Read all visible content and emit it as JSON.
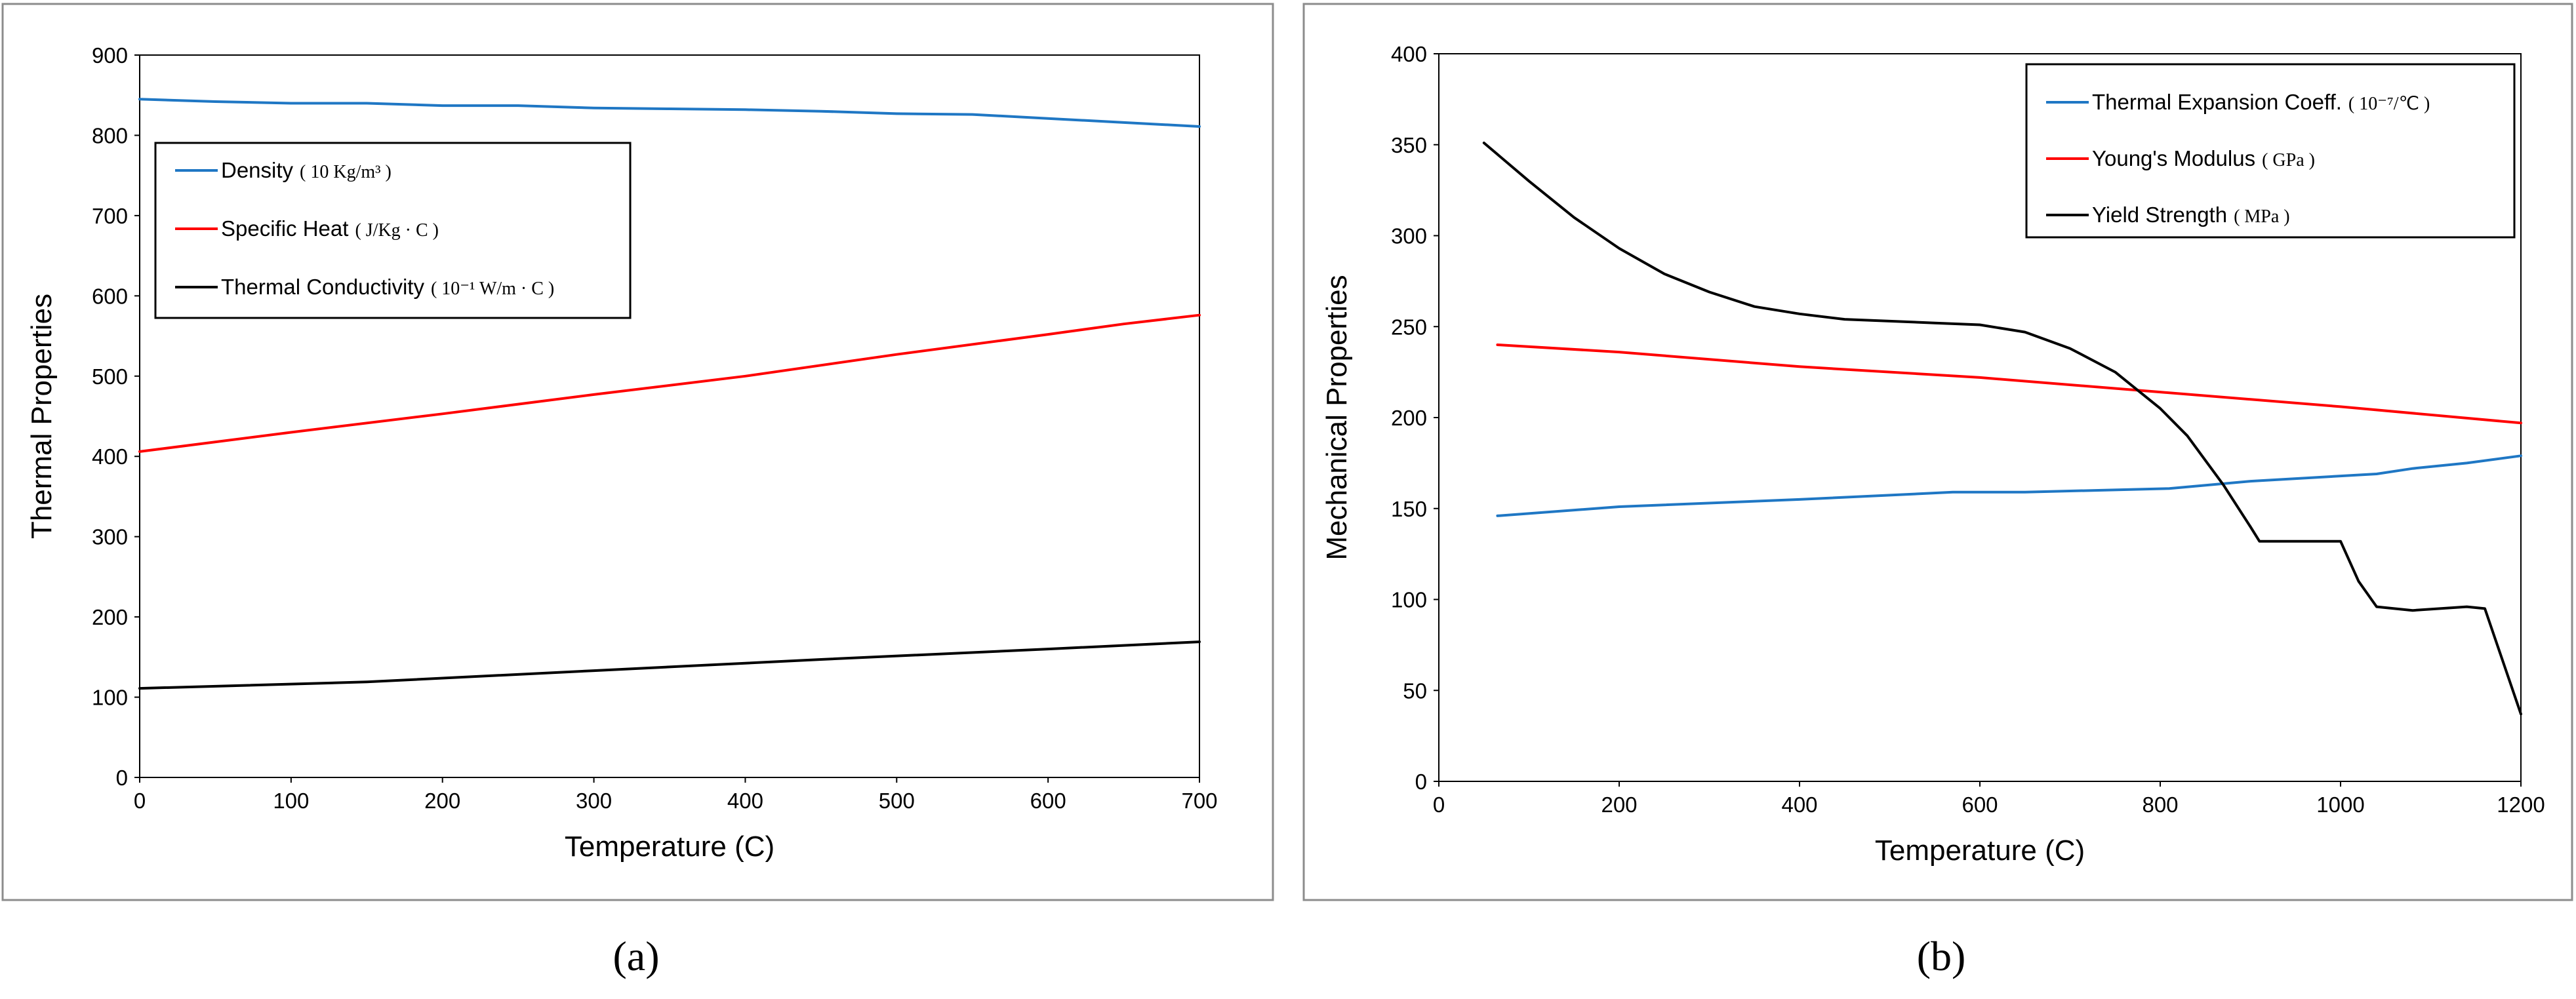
{
  "panels": {
    "a": "(a)",
    "b": "(b)"
  },
  "chart_data": [
    {
      "type": "line",
      "ylabel": "Thermal Properties",
      "xlabel": "Temperature (C)",
      "xlim": [
        0,
        700
      ],
      "ylim": [
        0,
        900
      ],
      "xticks": [
        "0",
        "100",
        "200",
        "300",
        "400",
        "500",
        "600",
        "700"
      ],
      "yticks": [
        "0",
        "100",
        "200",
        "300",
        "400",
        "500",
        "600",
        "700",
        "800",
        "900"
      ],
      "grid": false,
      "legend_position": "top-left",
      "series": [
        {
          "name": "Density",
          "unit": "( 10 Kg/m³ )",
          "color": "#1f77c4",
          "x": [
            0,
            50,
            100,
            150,
            200,
            250,
            300,
            350,
            400,
            450,
            500,
            550,
            600,
            650,
            700
          ],
          "y": [
            845,
            842,
            840,
            840,
            837,
            837,
            834,
            833,
            832,
            830,
            827,
            826,
            821,
            816,
            811
          ]
        },
        {
          "name": "Specific Heat",
          "unit": "( J/Kg · C )",
          "color": "#ff0000",
          "x": [
            0,
            100,
            200,
            300,
            400,
            500,
            600,
            650,
            700
          ],
          "y": [
            406,
            430,
            453,
            477,
            500,
            527,
            552,
            565,
            576
          ]
        },
        {
          "name": "Thermal Conductivity",
          "unit": "( 10⁻¹ W/m · C )",
          "color": "#000000",
          "x": [
            0,
            150,
            300,
            450,
            600,
            700
          ],
          "y": [
            111,
            119,
            133,
            147,
            160,
            169
          ]
        }
      ]
    },
    {
      "type": "line",
      "ylabel": "Mechanical Properties",
      "xlabel": "Temperature (C)",
      "xlim": [
        0,
        1200
      ],
      "ylim": [
        0,
        400
      ],
      "xticks": [
        "0",
        "200",
        "400",
        "600",
        "800",
        "1000",
        "1200"
      ],
      "yticks": [
        "0",
        "50",
        "100",
        "150",
        "200",
        "250",
        "300",
        "350",
        "400"
      ],
      "grid": false,
      "legend_position": "top-right",
      "series": [
        {
          "name": "Thermal Expansion Coeff.",
          "unit": "( 10⁻⁷/℃ )",
          "color": "#1f77c4",
          "x": [
            65,
            200,
            400,
            570,
            650,
            810,
            900,
            1040,
            1080,
            1140,
            1200
          ],
          "y": [
            146,
            151,
            155,
            159,
            159,
            161,
            165,
            169,
            172,
            175,
            179
          ]
        },
        {
          "name": "Young's Modulus",
          "unit": "( GPa )",
          "color": "#ff0000",
          "x": [
            65,
            200,
            400,
            600,
            800,
            1000,
            1200
          ],
          "y": [
            240,
            236,
            228,
            222,
            214,
            206,
            197
          ]
        },
        {
          "name": "Yield Strength",
          "unit": "( MPa )",
          "color": "#000000",
          "x": [
            50,
            100,
            150,
            200,
            250,
            300,
            350,
            400,
            450,
            500,
            550,
            600,
            650,
            700,
            750,
            800,
            830,
            870,
            900,
            910,
            1000,
            1020,
            1040,
            1080,
            1140,
            1160,
            1200
          ],
          "y": [
            351,
            330,
            310,
            293,
            279,
            269,
            261,
            257,
            254,
            253,
            252,
            251,
            247,
            238,
            225,
            205,
            190,
            163,
            140,
            132,
            132,
            110,
            96,
            94,
            96,
            95,
            37
          ]
        }
      ]
    }
  ]
}
